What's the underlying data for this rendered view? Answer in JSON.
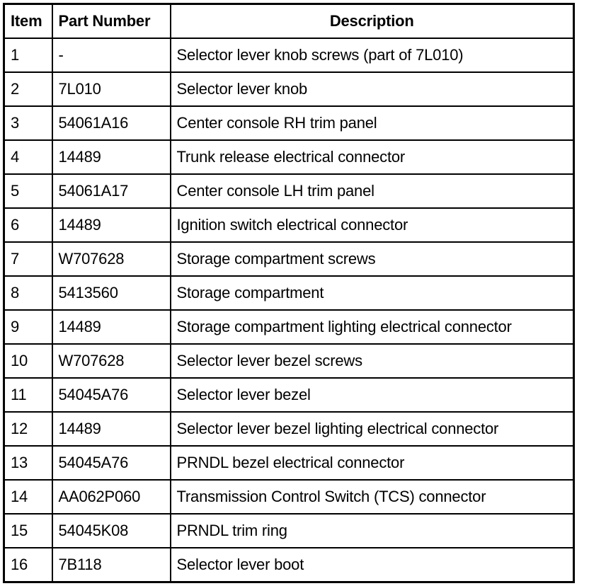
{
  "table": {
    "headers": [
      "Item",
      "Part Number",
      "Description"
    ],
    "rows": [
      [
        "1",
        "-",
        "Selector lever knob screws (part of 7L010)"
      ],
      [
        "2",
        "7L010",
        "Selector lever knob"
      ],
      [
        "3",
        "54061A16",
        "Center console RH trim panel"
      ],
      [
        "4",
        "14489",
        "Trunk release electrical connector"
      ],
      [
        "5",
        "54061A17",
        "Center console LH trim panel"
      ],
      [
        "6",
        "14489",
        "Ignition switch electrical connector"
      ],
      [
        "7",
        "W707628",
        "Storage compartment screws"
      ],
      [
        "8",
        "5413560",
        "Storage compartment"
      ],
      [
        "9",
        "14489",
        "Storage compartment lighting electrical connector"
      ],
      [
        "10",
        "W707628",
        "Selector lever bezel screws"
      ],
      [
        "11",
        "54045A76",
        "Selector lever bezel"
      ],
      [
        "12",
        "14489",
        "Selector lever bezel lighting electrical connector"
      ],
      [
        "13",
        "54045A76",
        "PRNDL bezel electrical connector"
      ],
      [
        "14",
        "AA062P060",
        "Transmission Control Switch (TCS) connector"
      ],
      [
        "15",
        "54045K08",
        "PRNDL trim ring"
      ],
      [
        "16",
        "7B118",
        "Selector lever boot"
      ]
    ]
  }
}
